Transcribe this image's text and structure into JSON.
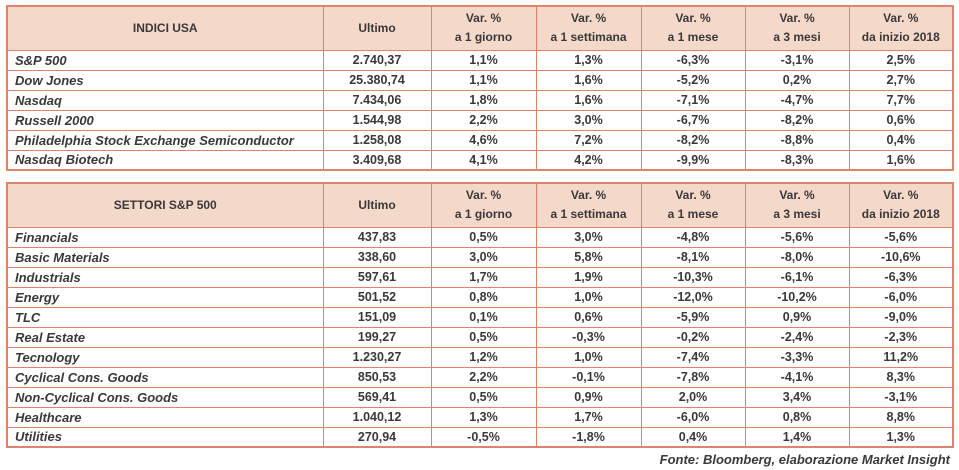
{
  "chart_data": [
    {
      "type": "table",
      "title": "INDICI USA",
      "ultimo_label": "Ultimo",
      "var_headers": [
        {
          "line1": "Var. %",
          "line2": "a 1 giorno"
        },
        {
          "line1": "Var. %",
          "line2": "a 1 settimana"
        },
        {
          "line1": "Var. %",
          "line2": "a 1 mese"
        },
        {
          "line1": "Var. %",
          "line2": "a 3 mesi"
        },
        {
          "line1": "Var. %",
          "line2": "da inizio 2018"
        }
      ],
      "rows": [
        {
          "name": "S&P 500",
          "ultimo": "2.740,37",
          "values": [
            "1,1%",
            "1,3%",
            "-6,3%",
            "-3,1%",
            "2,5%"
          ]
        },
        {
          "name": "Dow Jones",
          "ultimo": "25.380,74",
          "values": [
            "1,1%",
            "1,6%",
            "-5,2%",
            "0,2%",
            "2,7%"
          ]
        },
        {
          "name": "Nasdaq",
          "ultimo": "7.434,06",
          "values": [
            "1,8%",
            "1,6%",
            "-7,1%",
            "-4,7%",
            "7,7%"
          ]
        },
        {
          "name": "Russell 2000",
          "ultimo": "1.544,98",
          "values": [
            "2,2%",
            "3,0%",
            "-6,7%",
            "-8,2%",
            "0,6%"
          ]
        },
        {
          "name": "Philadelphia Stock Exchange Semiconductor",
          "ultimo": "1.258,08",
          "values": [
            "4,6%",
            "7,2%",
            "-8,2%",
            "-8,8%",
            "0,4%"
          ]
        },
        {
          "name": "Nasdaq Biotech",
          "ultimo": "3.409,68",
          "values": [
            "4,1%",
            "4,2%",
            "-9,9%",
            "-8,3%",
            "1,6%"
          ]
        }
      ]
    },
    {
      "type": "table",
      "title": "SETTORI S&P 500",
      "ultimo_label": "Ultimo",
      "var_headers": [
        {
          "line1": "Var. %",
          "line2": "a 1 giorno"
        },
        {
          "line1": "Var. %",
          "line2": "a 1 settimana"
        },
        {
          "line1": "Var. %",
          "line2": "a 1 mese"
        },
        {
          "line1": "Var. %",
          "line2": "a 3 mesi"
        },
        {
          "line1": "Var. %",
          "line2": "da inizio 2018"
        }
      ],
      "rows": [
        {
          "name": "Financials",
          "ultimo": "437,83",
          "values": [
            "0,5%",
            "3,0%",
            "-4,8%",
            "-5,6%",
            "-5,6%"
          ]
        },
        {
          "name": "Basic Materials",
          "ultimo": "338,60",
          "values": [
            "3,0%",
            "5,8%",
            "-8,1%",
            "-8,0%",
            "-10,6%"
          ]
        },
        {
          "name": "Industrials",
          "ultimo": "597,61",
          "values": [
            "1,7%",
            "1,9%",
            "-10,3%",
            "-6,1%",
            "-6,3%"
          ]
        },
        {
          "name": "Energy",
          "ultimo": "501,52",
          "values": [
            "0,8%",
            "1,0%",
            "-12,0%",
            "-10,2%",
            "-6,0%"
          ]
        },
        {
          "name": "TLC",
          "ultimo": "151,09",
          "values": [
            "0,1%",
            "0,6%",
            "-5,9%",
            "0,9%",
            "-9,0%"
          ]
        },
        {
          "name": "Real Estate",
          "ultimo": "199,27",
          "values": [
            "0,5%",
            "-0,3%",
            "-0,2%",
            "-2,4%",
            "-2,3%"
          ]
        },
        {
          "name": "Tecnology",
          "ultimo": "1.230,27",
          "values": [
            "1,2%",
            "1,0%",
            "-7,4%",
            "-3,3%",
            "11,2%"
          ]
        },
        {
          "name": "Cyclical Cons. Goods",
          "ultimo": "850,53",
          "values": [
            "2,2%",
            "-0,1%",
            "-7,8%",
            "-4,1%",
            "8,3%"
          ]
        },
        {
          "name": "Non-Cyclical Cons. Goods",
          "ultimo": "569,41",
          "values": [
            "0,5%",
            "0,9%",
            "2,0%",
            "3,4%",
            "-3,1%"
          ]
        },
        {
          "name": "Healthcare",
          "ultimo": "1.040,12",
          "values": [
            "1,3%",
            "1,7%",
            "-6,0%",
            "0,8%",
            "8,8%"
          ]
        },
        {
          "name": "Utilities",
          "ultimo": "270,94",
          "values": [
            "-0,5%",
            "-1,8%",
            "0,4%",
            "1,4%",
            "1,3%"
          ]
        }
      ]
    }
  ],
  "footer": "Fonte: Bloomberg, elaborazione Market Insight",
  "colors": {
    "border": "#df8468",
    "header_bg": "#f4d9cb",
    "text": "#3b3838"
  }
}
